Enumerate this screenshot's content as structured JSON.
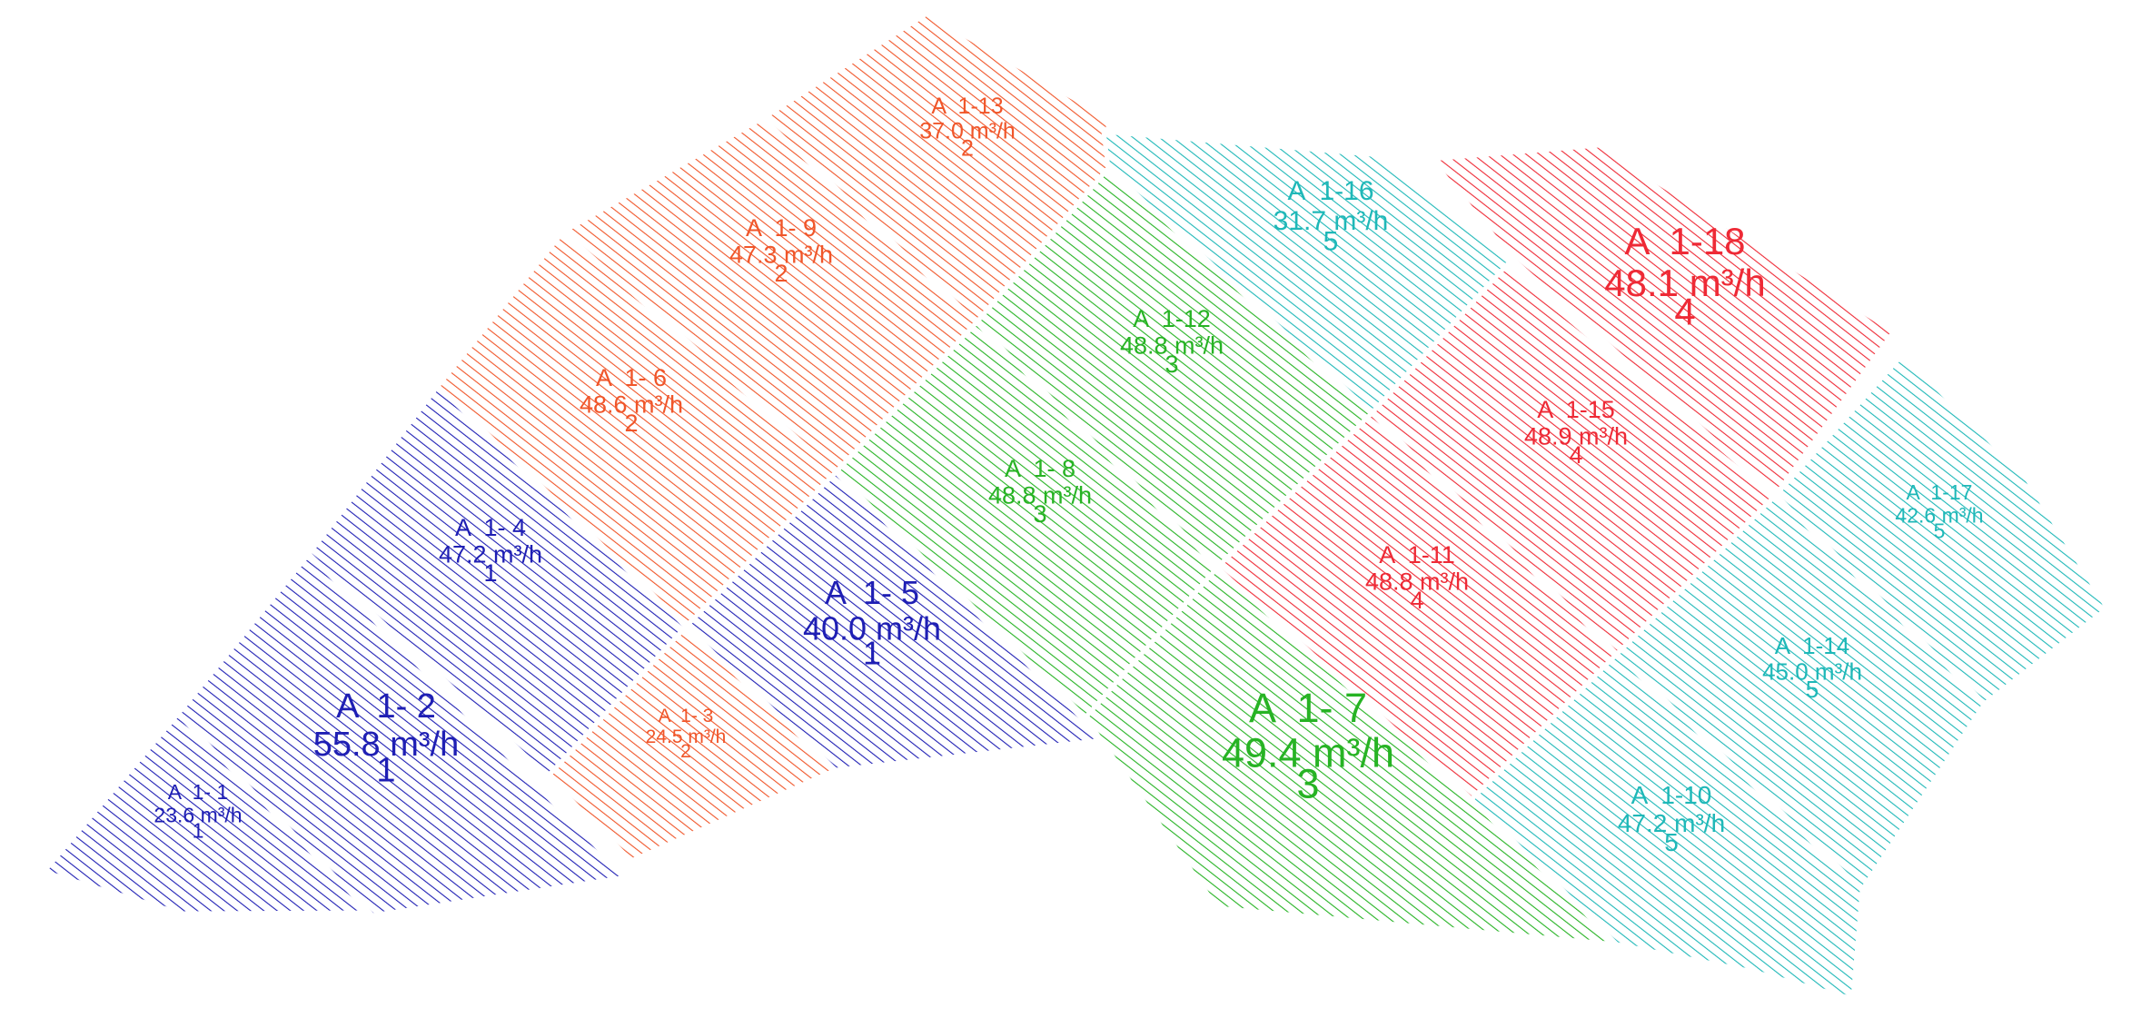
{
  "groups": [
    {
      "id": 1,
      "color": "#1f1fb4"
    },
    {
      "id": 2,
      "color": "#f0562a"
    },
    {
      "id": 3,
      "color": "#27b324"
    },
    {
      "id": 4,
      "color": "#ee2a36"
    },
    {
      "id": 5,
      "color": "#1fb8b8"
    }
  ],
  "zones": [
    {
      "code": "A  1- 1",
      "flow": "23.6 m³/h",
      "group": "1"
    },
    {
      "code": "A  1- 2",
      "flow": "55.8 m³/h",
      "group": "1"
    },
    {
      "code": "A  1- 3",
      "flow": "24.5 m³/h",
      "group": "2"
    },
    {
      "code": "A  1- 4",
      "flow": "47.2 m³/h",
      "group": "1"
    },
    {
      "code": "A  1- 5",
      "flow": "40.0 m³/h",
      "group": "1"
    },
    {
      "code": "A  1- 6",
      "flow": "48.6 m³/h",
      "group": "2"
    },
    {
      "code": "A  1- 7",
      "flow": "49.4 m³/h",
      "group": "3"
    },
    {
      "code": "A  1- 8",
      "flow": "48.8 m³/h",
      "group": "3"
    },
    {
      "code": "A  1- 9",
      "flow": "47.3 m³/h",
      "group": "2"
    },
    {
      "code": "A  1-10",
      "flow": "47.2 m³/h",
      "group": "5"
    },
    {
      "code": "A  1-11",
      "flow": "48.8 m³/h",
      "group": "4"
    },
    {
      "code": "A  1-12",
      "flow": "48.8 m³/h",
      "group": "3"
    },
    {
      "code": "A  1-13",
      "flow": "37.0 m³/h",
      "group": "2"
    },
    {
      "code": "A  1-14",
      "flow": "45.0 m³/h",
      "group": "5"
    },
    {
      "code": "A  1-15",
      "flow": "48.9 m³/h",
      "group": "4"
    },
    {
      "code": "A  1-16",
      "flow": "31.7 m³/h",
      "group": "5"
    },
    {
      "code": "A  1-17",
      "flow": "42.6 m³/h",
      "group": "5"
    },
    {
      "code": "A  1-18",
      "flow": "48.1 m³/h",
      "group": "4"
    }
  ]
}
